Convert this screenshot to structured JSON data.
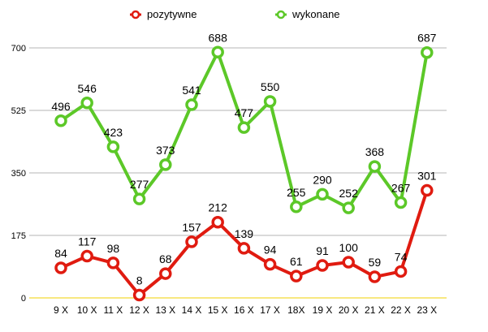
{
  "chart_data": {
    "type": "line",
    "title": "",
    "xlabel": "",
    "ylabel": "",
    "categories": [
      "9 X",
      "10 X",
      "11 X",
      "12 X",
      "13 X",
      "14 X",
      "15 X",
      "16 X",
      "17 X",
      "18X",
      "19 X",
      "20 X",
      "21 X",
      "22 X",
      "23 X"
    ],
    "series": [
      {
        "name": "pozytywne",
        "color": "#e01b10",
        "values": [
          84,
          117,
          98,
          8,
          68,
          157,
          212,
          139,
          94,
          61,
          91,
          100,
          59,
          74,
          301
        ]
      },
      {
        "name": "wykonane",
        "color": "#5cc828",
        "values": [
          496,
          546,
          423,
          277,
          373,
          541,
          688,
          477,
          550,
          255,
          290,
          252,
          368,
          267,
          687
        ]
      }
    ],
    "yticks": [
      "0",
      "175",
      "350",
      "525",
      "700"
    ],
    "ylim": [
      0,
      700
    ],
    "grid": true,
    "legend": "top"
  }
}
